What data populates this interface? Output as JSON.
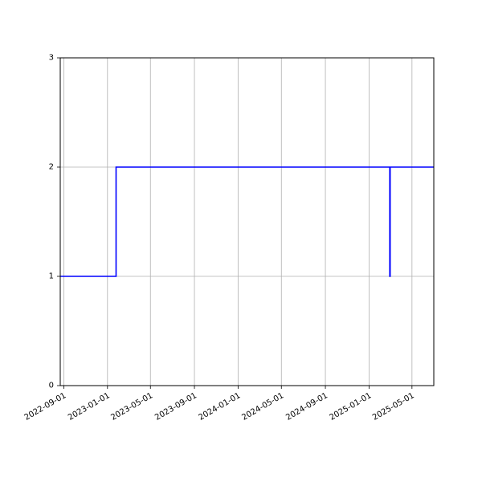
{
  "chart_data": {
    "type": "line",
    "title": "",
    "xlabel": "",
    "ylabel": "",
    "x_scale": "date",
    "xlim": [
      "2022-08-22",
      "2025-07-01"
    ],
    "ylim": [
      0,
      3
    ],
    "grid": true,
    "legend": "none",
    "x_ticks": [
      "2022-09-01",
      "2023-01-01",
      "2023-05-01",
      "2023-09-01",
      "2024-01-01",
      "2024-05-01",
      "2024-09-01",
      "2025-01-01",
      "2025-05-01"
    ],
    "y_ticks": [
      "0",
      "1",
      "2",
      "3"
    ],
    "series": [
      {
        "color": "#0000ff",
        "step": "post",
        "x": [
          "2022-08-22",
          "2023-01-25",
          "2025-02-28",
          "2025-03-01",
          "2025-07-01"
        ],
        "y": [
          1,
          2,
          1,
          2,
          2
        ]
      }
    ]
  }
}
